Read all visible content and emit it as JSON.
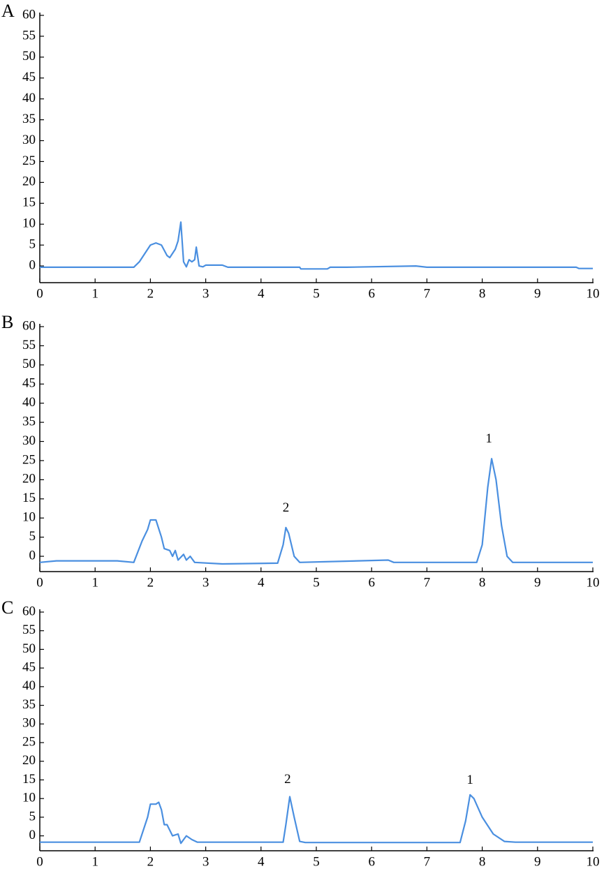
{
  "chart_data": [
    {
      "type": "line",
      "panel_label": "A",
      "xlim": [
        0,
        10
      ],
      "ylim": [
        -4,
        60
      ],
      "xticks": [
        0,
        1,
        2,
        3,
        4,
        5,
        6,
        7,
        8,
        9,
        10
      ],
      "yticks": [
        0,
        5,
        10,
        15,
        20,
        25,
        30,
        35,
        40,
        45,
        50,
        55,
        60
      ],
      "series": [
        {
          "color": "#4a8fe0",
          "x": [
            0,
            1.7,
            1.8,
            1.9,
            2.0,
            2.1,
            2.2,
            2.3,
            2.35,
            2.45,
            2.5,
            2.55,
            2.6,
            2.65,
            2.7,
            2.75,
            2.8,
            2.83,
            2.88,
            2.95,
            3.0,
            3.3,
            3.4,
            4.7,
            4.72,
            5.2,
            5.25,
            5.5,
            5.55,
            6.8,
            7.0,
            9.7,
            9.75,
            10
          ],
          "values": [
            -0.3,
            -0.3,
            1,
            3,
            5,
            5.5,
            5,
            2.5,
            2,
            4,
            6,
            10.5,
            1,
            -0.2,
            1.5,
            1,
            1.5,
            4.5,
            0,
            -0.2,
            0.2,
            0.2,
            -0.3,
            -0.3,
            -0.7,
            -0.7,
            -0.3,
            -0.3,
            -0.3,
            0,
            -0.3,
            -0.3,
            -0.6,
            -0.6
          ]
        }
      ],
      "annotations": []
    },
    {
      "type": "line",
      "panel_label": "B",
      "xlim": [
        0,
        10
      ],
      "ylim": [
        -4,
        60
      ],
      "xticks": [
        0,
        1,
        2,
        3,
        4,
        5,
        6,
        7,
        8,
        9,
        10
      ],
      "yticks": [
        0,
        5,
        10,
        15,
        20,
        25,
        30,
        35,
        40,
        45,
        50,
        55,
        60
      ],
      "series": [
        {
          "color": "#4a8fe0",
          "x": [
            0,
            0.3,
            1.4,
            1.7,
            1.85,
            1.95,
            2.0,
            2.1,
            2.2,
            2.25,
            2.35,
            2.4,
            2.45,
            2.5,
            2.6,
            2.65,
            2.72,
            2.8,
            3.3,
            4.3,
            4.4,
            4.45,
            4.5,
            4.6,
            4.7,
            6.3,
            6.4,
            7.9,
            8.0,
            8.1,
            8.17,
            8.25,
            8.35,
            8.45,
            8.55,
            10
          ],
          "values": [
            -1.6,
            -1.2,
            -1.2,
            -1.6,
            4,
            7,
            9.5,
            9.5,
            5,
            2,
            1.5,
            0,
            1.5,
            -1,
            0.5,
            -1,
            0,
            -1.6,
            -2,
            -1.8,
            3,
            7.5,
            6,
            0,
            -1.6,
            -1,
            -1.6,
            -1.6,
            3,
            18,
            25.5,
            20,
            8,
            0,
            -1.6,
            -1.6
          ]
        }
      ],
      "annotations": [
        {
          "text": "2",
          "x": 4.45,
          "y": 12.5
        },
        {
          "text": "1",
          "x": 8.12,
          "y": 30.5
        }
      ]
    },
    {
      "type": "line",
      "panel_label": "C",
      "xlim": [
        0,
        10
      ],
      "ylim": [
        -4,
        60
      ],
      "xticks": [
        0,
        1,
        2,
        3,
        4,
        5,
        6,
        7,
        8,
        9,
        10
      ],
      "yticks": [
        0,
        5,
        10,
        15,
        20,
        25,
        30,
        35,
        40,
        45,
        50,
        55,
        60
      ],
      "series": [
        {
          "color": "#4a8fe0",
          "x": [
            0,
            1.8,
            1.95,
            2.0,
            2.1,
            2.15,
            2.2,
            2.25,
            2.3,
            2.4,
            2.5,
            2.55,
            2.65,
            2.75,
            2.85,
            4.4,
            4.45,
            4.52,
            4.6,
            4.7,
            4.8,
            7.6,
            7.7,
            7.78,
            7.85,
            8.0,
            8.2,
            8.4,
            8.6,
            10
          ],
          "values": [
            -1.7,
            -1.7,
            5,
            8.5,
            8.5,
            9,
            7,
            3,
            3,
            0,
            0.5,
            -2,
            0,
            -1,
            -1.7,
            -1.7,
            3,
            10.5,
            5,
            -1.5,
            -1.8,
            -1.8,
            4,
            11,
            10,
            5,
            0.5,
            -1.5,
            -1.7,
            -1.7
          ]
        }
      ],
      "annotations": [
        {
          "text": "2",
          "x": 4.48,
          "y": 15
        },
        {
          "text": "1",
          "x": 7.78,
          "y": 14.8
        }
      ]
    }
  ]
}
